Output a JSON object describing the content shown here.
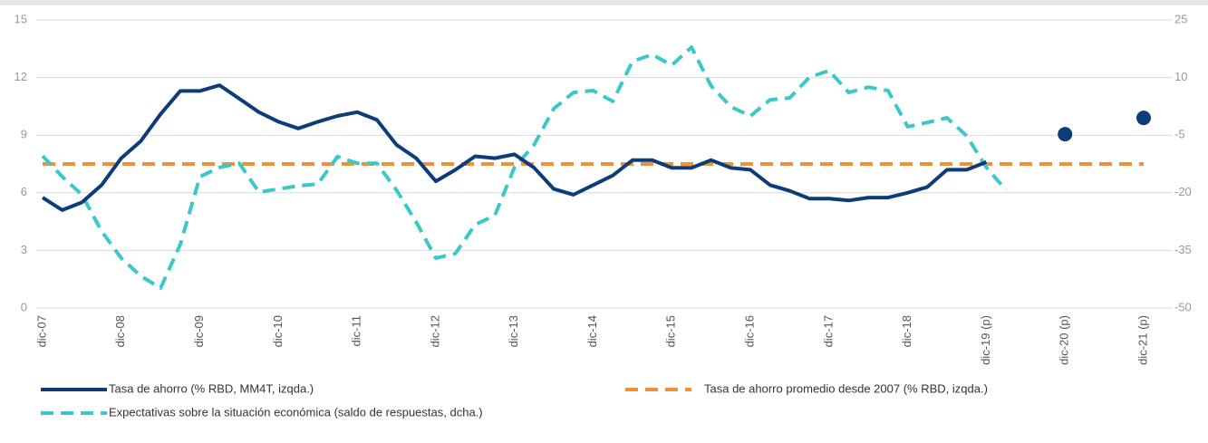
{
  "chart_data": {
    "type": "line",
    "categories": [
      "dic-07",
      null,
      null,
      null,
      "dic-08",
      null,
      null,
      null,
      "dic-09",
      null,
      null,
      null,
      "dic-10",
      null,
      null,
      null,
      "dic-11",
      null,
      null,
      null,
      "dic-12",
      null,
      null,
      null,
      "dic-13",
      null,
      null,
      null,
      "dic-14",
      null,
      null,
      null,
      "dic-15",
      null,
      null,
      null,
      "dic-16",
      null,
      null,
      null,
      "dic-17",
      null,
      null,
      null,
      "dic-18",
      null,
      null,
      null,
      "dic-19 (p)",
      null,
      null,
      null,
      "dic-20 (p)",
      null,
      null,
      null,
      "dic-21 (p)"
    ],
    "series": [
      {
        "name": "Tasa de ahorro (% RBD, MM4T, izqda.)",
        "color": "#0d3c78",
        "dashed": false,
        "values": [
          5.75,
          5.1,
          5.5,
          6.4,
          7.8,
          8.7,
          10.1,
          11.3,
          11.3,
          11.6,
          10.9,
          10.2,
          9.7,
          9.35,
          9.7,
          10.0,
          10.2,
          9.8,
          8.5,
          7.8,
          6.6,
          7.2,
          7.9,
          7.8,
          8.0,
          7.3,
          6.2,
          5.9,
          6.4,
          6.9,
          7.7,
          7.7,
          7.3,
          7.3,
          7.7,
          7.3,
          7.2,
          6.4,
          6.1,
          5.7,
          5.7,
          5.6,
          5.75,
          5.75,
          6.0,
          6.3,
          7.2,
          7.2,
          7.6,
          null,
          null,
          null,
          9.05,
          null,
          null,
          null,
          9.9
        ]
      },
      {
        "name": "Tasa de ahorro promedio desde 2007 (% RBD, izqda.)",
        "color": "#f0913a",
        "dashed": true,
        "values": [
          7.5,
          7.5,
          7.5,
          7.5,
          7.5,
          7.5,
          7.5,
          7.5,
          7.5,
          7.5,
          7.5,
          7.5,
          7.5,
          7.5,
          7.5,
          7.5,
          7.5,
          7.5,
          7.5,
          7.5,
          7.5,
          7.5,
          7.5,
          7.5,
          7.5,
          7.5,
          7.5,
          7.5,
          7.5,
          7.5,
          7.5,
          7.5,
          7.5,
          7.5,
          7.5,
          7.5,
          7.5,
          7.5,
          7.5,
          7.5,
          7.5,
          7.5,
          7.5,
          7.5,
          7.5,
          7.5,
          7.5,
          7.5,
          7.5,
          7.5,
          7.5,
          7.5,
          7.5,
          7.5,
          7.5,
          7.5,
          7.5
        ]
      },
      {
        "name": "Expectativas sobre la situación económica (saldo de respuestas, dcha.)",
        "color": "#3cc8c8",
        "dashed": true,
        "axis": "y2",
        "values": [
          -10.4,
          -15.8,
          -20.5,
          -30,
          -37,
          -41.7,
          -44.8,
          -33.5,
          -15.8,
          -13.4,
          -12.3,
          -19.8,
          -19,
          -18.2,
          -17.7,
          -10.6,
          -12.3,
          -12.3,
          -19.3,
          -27.6,
          -37,
          -35.8,
          -28.3,
          -25.9,
          -13.4,
          -7.5,
          1.9,
          6.1,
          6.6,
          3.8,
          14.2,
          16,
          13.2,
          17.9,
          7.8,
          2.4,
          0,
          4.2,
          4.7,
          10.1,
          11.8,
          6.1,
          7.5,
          6.6,
          -2.8,
          -1.7,
          -0.5,
          -5.2,
          -13.4,
          -19.3,
          null,
          null,
          null,
          null,
          null,
          null,
          null
        ]
      }
    ],
    "ylim": [
      0,
      15
    ],
    "yticks": [
      0,
      3,
      6,
      9,
      12,
      15
    ],
    "y2lim": [
      -50,
      25
    ],
    "y2ticks": [
      -50,
      -35,
      -20,
      -5,
      10,
      25
    ],
    "grid": true
  }
}
